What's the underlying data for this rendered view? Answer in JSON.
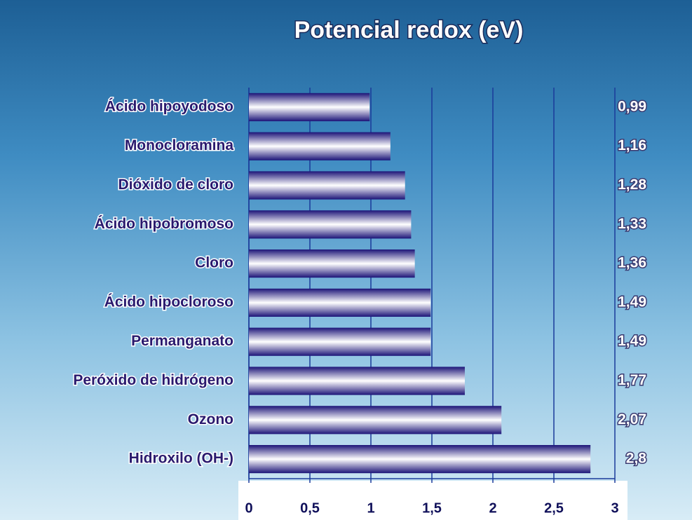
{
  "chart_data": {
    "type": "bar",
    "orientation": "horizontal",
    "title": "Potencial redox (eV)",
    "categories": [
      "Ácido hipoyodoso",
      "Monocloramina",
      "Dióxido de cloro",
      "Ácido hipobromoso",
      "Cloro",
      "Ácido hipocloroso",
      "Permanganato",
      "Peróxido de hidrógeno",
      "Ozono",
      "Hidroxilo (OH-)"
    ],
    "values": [
      0.99,
      1.16,
      1.28,
      1.33,
      1.36,
      1.49,
      1.49,
      1.77,
      2.07,
      2.8
    ],
    "value_labels": [
      "0,99",
      "1,16",
      "1,28",
      "1,33",
      "1,36",
      "1,49",
      "1,49",
      "1,77",
      "2,07",
      "2,8"
    ],
    "color": "#1c1478",
    "xlim": [
      0,
      3
    ],
    "xticks": [
      0,
      {
        "value": 0.5,
        "label": "0,5"
      },
      1,
      {
        "value": 1.5,
        "label": "1,5"
      },
      2,
      {
        "value": 2.5,
        "label": "2,5"
      },
      3
    ],
    "grid": true
  }
}
